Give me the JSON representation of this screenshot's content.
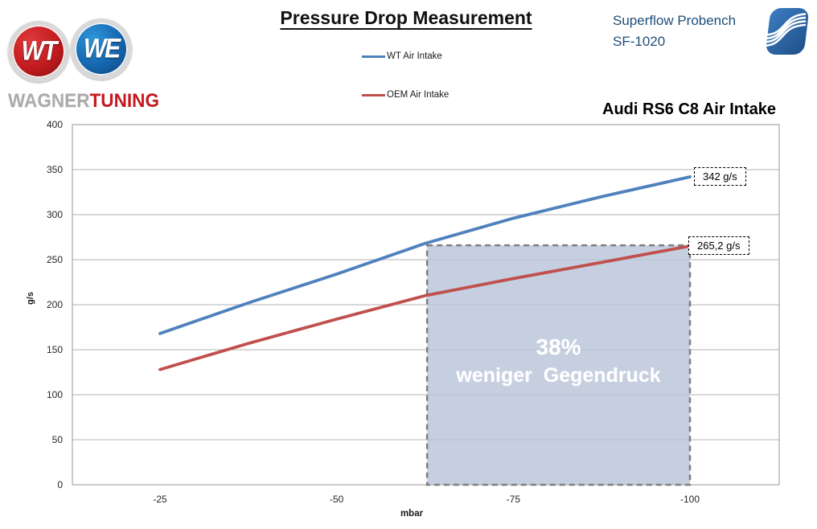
{
  "header": {
    "title": "Pressure Drop Measurement",
    "bench_line1": "Superflow Probench",
    "bench_line2": "SF-1020"
  },
  "branding": {
    "mark1": "WT",
    "mark2": "WE",
    "word1": "WAGNER",
    "word2": "TUNING"
  },
  "chart_data": {
    "type": "line",
    "title": "Audi RS6 C8 Air Intake",
    "xlabel": "mbar",
    "ylabel": "g/s",
    "ylim": [
      0,
      400
    ],
    "y_ticks": [
      0,
      50,
      100,
      150,
      200,
      250,
      300,
      350,
      400
    ],
    "x_ticks": [
      -25,
      -50,
      -75,
      -100
    ],
    "grid": "horizontal",
    "legend_position": "top-center",
    "series": [
      {
        "name": "WT Air Intake",
        "color": "#4f81bd",
        "x": [
          -25,
          -37.5,
          -50,
          -62.5,
          -75,
          -87.5,
          -100
        ],
        "values": [
          168,
          202,
          234,
          268,
          296,
          320,
          342
        ],
        "end_label": "342 g/s"
      },
      {
        "name": "OEM Air Intake",
        "color": "#c0504d",
        "x": [
          -25,
          -37.5,
          -50,
          -62.5,
          -75,
          -87.5,
          -100
        ],
        "values": [
          128,
          157,
          184,
          210,
          229,
          247,
          265.2
        ],
        "end_label": "265,2 g/s"
      }
    ],
    "annotation": {
      "region": {
        "x_from": -62.8,
        "x_to": -100,
        "y_from": 0,
        "y_to": 266,
        "fill": "#b7c3d8",
        "border": "#7f7f7f",
        "label_line1": "38%",
        "label_line2": "weniger  Gegendruck"
      }
    },
    "colors": {
      "grid": "#b3b3b3",
      "plot_border": "#a6a6a6",
      "tick_text": "#262626"
    }
  }
}
